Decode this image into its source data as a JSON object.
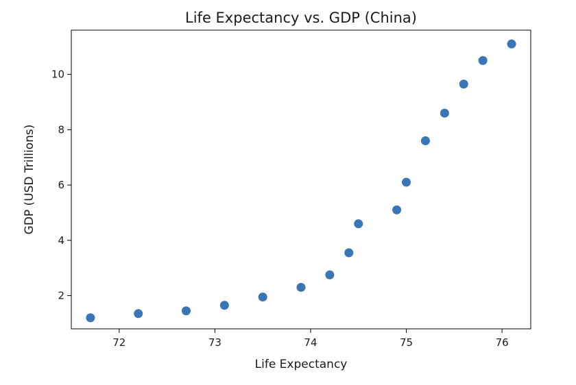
{
  "chart_data": {
    "type": "scatter",
    "title": "Life Expectancy vs. GDP (China)",
    "xlabel": "Life Expectancy",
    "ylabel": "GDP (USD Trillions)",
    "xlim": [
      71.5,
      76.3
    ],
    "ylim": [
      0.8,
      11.6
    ],
    "xticks": [
      72,
      73,
      74,
      75,
      76
    ],
    "yticks": [
      2,
      4,
      6,
      8,
      10
    ],
    "grid": false,
    "marker_color": "#3a75b5",
    "points": [
      {
        "x": 71.7,
        "y": 1.2
      },
      {
        "x": 72.2,
        "y": 1.35
      },
      {
        "x": 72.7,
        "y": 1.45
      },
      {
        "x": 73.1,
        "y": 1.65
      },
      {
        "x": 73.5,
        "y": 1.95
      },
      {
        "x": 73.9,
        "y": 2.3
      },
      {
        "x": 74.2,
        "y": 2.75
      },
      {
        "x": 74.4,
        "y": 3.55
      },
      {
        "x": 74.5,
        "y": 4.6
      },
      {
        "x": 74.9,
        "y": 5.1
      },
      {
        "x": 75.0,
        "y": 6.1
      },
      {
        "x": 75.2,
        "y": 7.6
      },
      {
        "x": 75.4,
        "y": 8.6
      },
      {
        "x": 75.6,
        "y": 9.65
      },
      {
        "x": 75.8,
        "y": 10.5
      },
      {
        "x": 76.1,
        "y": 11.1
      }
    ]
  }
}
